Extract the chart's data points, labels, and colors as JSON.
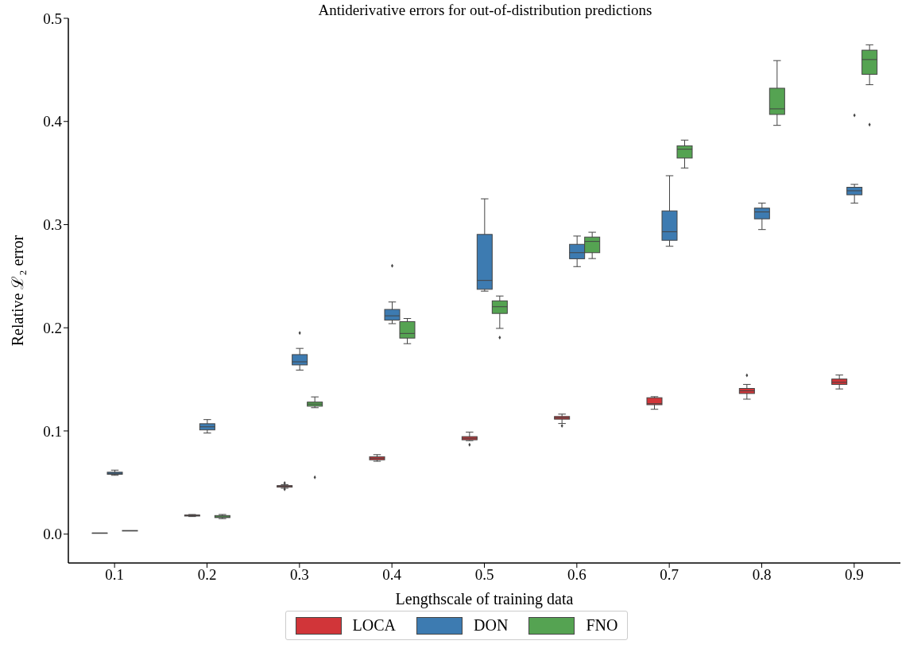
{
  "chart_data": {
    "type": "box",
    "title": "Antiderivative errors for out-of-distribution predictions",
    "xlabel": "Lengthscale of training data",
    "ylabel": "Relative ℒ₂ error",
    "categories": [
      "0.1",
      "0.2",
      "0.3",
      "0.4",
      "0.5",
      "0.6",
      "0.7",
      "0.8",
      "0.9"
    ],
    "ylim": [
      -0.028,
      0.5
    ],
    "yticks": [
      {
        "value": 0,
        "label": "0.0"
      },
      0.1,
      0.2,
      0.3,
      0.4,
      0.5
    ],
    "grid": false,
    "legend": "bottom",
    "series": [
      {
        "name": "LOCA",
        "color": "#d13539",
        "boxes": [
          {
            "low": 0.0008,
            "q1": 0.0009,
            "median": 0.001,
            "q3": 0.0011,
            "high": 0.0012
          },
          {
            "low": 0.017,
            "q1": 0.0175,
            "median": 0.018,
            "q3": 0.0185,
            "high": 0.019
          },
          {
            "low": 0.0445,
            "q1": 0.0455,
            "median": 0.0465,
            "q3": 0.047,
            "high": 0.048,
            "outliers": [
              0.0495,
              0.0435
            ]
          },
          {
            "low": 0.0706,
            "q1": 0.072,
            "median": 0.0735,
            "q3": 0.075,
            "high": 0.077
          },
          {
            "low": 0.0906,
            "q1": 0.0914,
            "median": 0.0929,
            "q3": 0.0945,
            "high": 0.0989,
            "outliers": [
              0.0867
            ]
          },
          {
            "low": 0.1072,
            "q1": 0.1114,
            "median": 0.1127,
            "q3": 0.114,
            "high": 0.1163,
            "outliers": [
              0.105
            ]
          },
          {
            "low": 0.121,
            "q1": 0.1254,
            "median": 0.1264,
            "q3": 0.1322,
            "high": 0.1332
          },
          {
            "low": 0.1308,
            "q1": 0.1363,
            "median": 0.1389,
            "q3": 0.1412,
            "high": 0.1451,
            "outliers": [
              0.154
            ]
          },
          {
            "low": 0.1407,
            "q1": 0.1451,
            "median": 0.1472,
            "q3": 0.1503,
            "high": 0.1542
          }
        ]
      },
      {
        "name": "DON",
        "color": "#3d7bb1",
        "boxes": [
          {
            "low": 0.057,
            "q1": 0.058,
            "median": 0.059,
            "q3": 0.06,
            "high": 0.062
          },
          {
            "low": 0.098,
            "q1": 0.101,
            "median": 0.104,
            "q3": 0.107,
            "high": 0.111
          },
          {
            "low": 0.159,
            "q1": 0.164,
            "median": 0.167,
            "q3": 0.174,
            "high": 0.18,
            "outliers": [
              0.195
            ]
          },
          {
            "low": 0.204,
            "q1": 0.2074,
            "median": 0.2116,
            "q3": 0.2178,
            "high": 0.225,
            "outliers": [
              0.26
            ]
          },
          {
            "low": 0.2355,
            "q1": 0.2373,
            "median": 0.2459,
            "q3": 0.2905,
            "high": 0.325
          },
          {
            "low": 0.2593,
            "q1": 0.2669,
            "median": 0.2728,
            "q3": 0.2809,
            "high": 0.2889
          },
          {
            "low": 0.279,
            "q1": 0.2848,
            "median": 0.2931,
            "q3": 0.3133,
            "high": 0.3474
          },
          {
            "low": 0.2952,
            "q1": 0.3056,
            "median": 0.3123,
            "q3": 0.316,
            "high": 0.3209
          },
          {
            "low": 0.3209,
            "q1": 0.3289,
            "median": 0.3328,
            "q3": 0.3362,
            "high": 0.339,
            "outliers": [
              0.406
            ]
          }
        ]
      },
      {
        "name": "FNO",
        "color": "#55a352",
        "boxes": [
          {
            "low": 0.0025,
            "q1": 0.003,
            "median": 0.0032,
            "q3": 0.0035,
            "high": 0.004
          },
          {
            "low": 0.015,
            "q1": 0.016,
            "median": 0.0166,
            "q3": 0.018,
            "high": 0.019
          },
          {
            "low": 0.1225,
            "q1": 0.124,
            "median": 0.126,
            "q3": 0.128,
            "high": 0.133,
            "outliers": [
              0.055
            ]
          },
          {
            "low": 0.1846,
            "q1": 0.19,
            "median": 0.1945,
            "q3": 0.206,
            "high": 0.209
          },
          {
            "low": 0.1994,
            "q1": 0.2139,
            "median": 0.2204,
            "q3": 0.2261,
            "high": 0.2308,
            "outliers": [
              0.1906
            ]
          },
          {
            "low": 0.2671,
            "q1": 0.2728,
            "median": 0.2837,
            "q3": 0.2879,
            "high": 0.2926
          },
          {
            "low": 0.3549,
            "q1": 0.3645,
            "median": 0.3731,
            "q3": 0.3764,
            "high": 0.3819
          },
          {
            "low": 0.3962,
            "q1": 0.4068,
            "median": 0.4122,
            "q3": 0.4322,
            "high": 0.459
          },
          {
            "low": 0.4356,
            "q1": 0.4457,
            "median": 0.46,
            "q3": 0.4691,
            "high": 0.4743,
            "outliers": [
              0.397
            ]
          }
        ]
      }
    ]
  }
}
